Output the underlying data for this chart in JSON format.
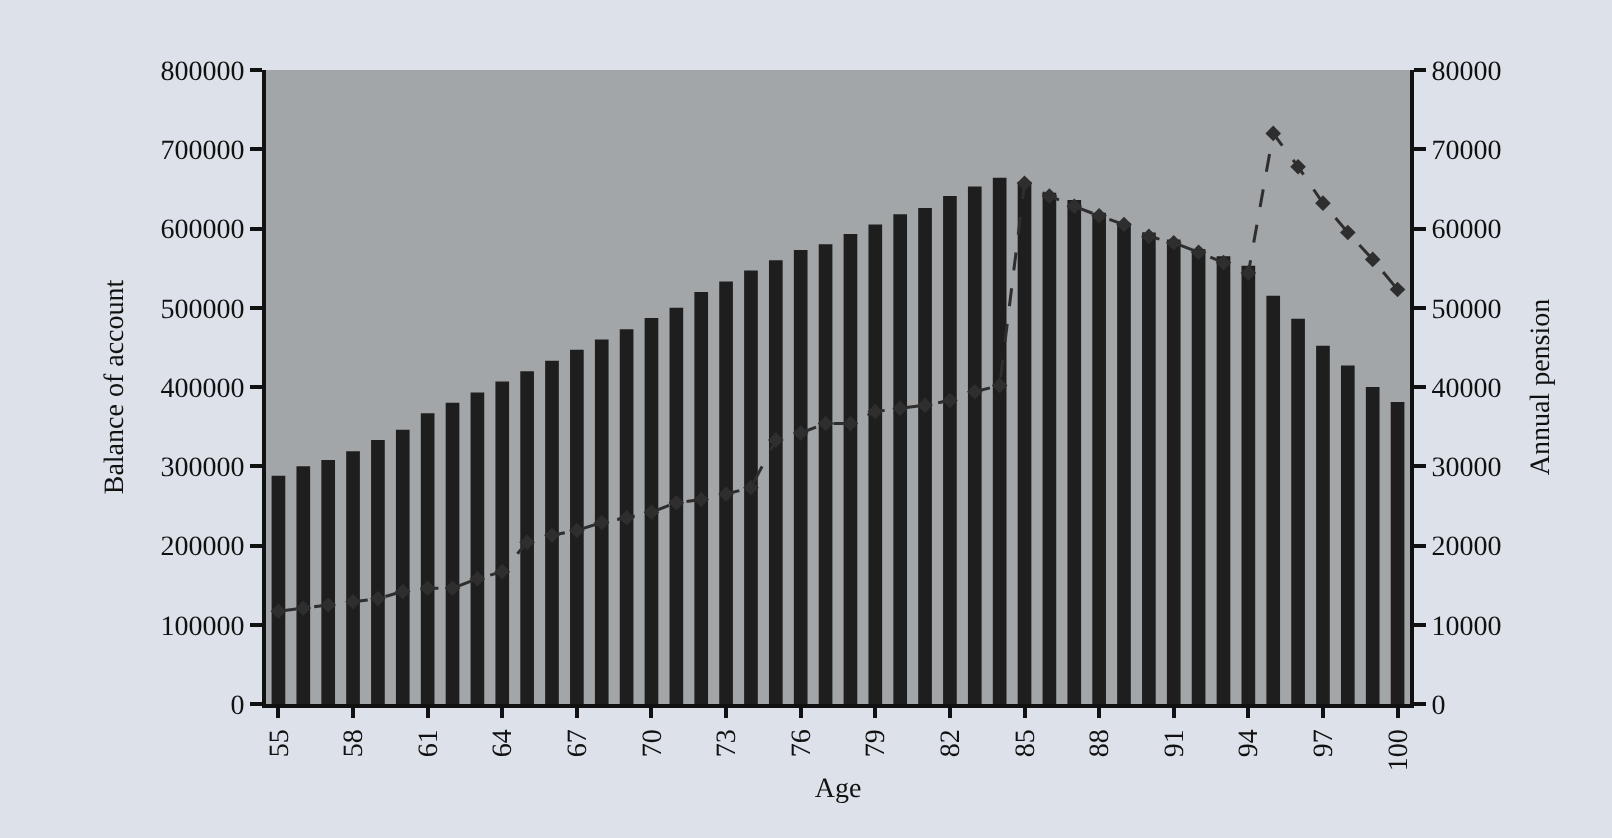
{
  "chart_data": {
    "type": "bar",
    "xlabel": "Age",
    "ylabel": "Balance of account",
    "y2label": "Annual pension",
    "categories": [
      "55",
      null,
      null,
      "58",
      null,
      null,
      "61",
      null,
      null,
      "64",
      null,
      null,
      "67",
      null,
      null,
      "70",
      null,
      null,
      "73",
      null,
      null,
      "76",
      null,
      null,
      "79",
      null,
      null,
      "82",
      null,
      null,
      "85",
      null,
      null,
      "88",
      null,
      null,
      "91",
      null,
      null,
      "94",
      null,
      null,
      "97",
      null,
      null,
      "100"
    ],
    "series": [
      {
        "color": "#1e1e1e",
        "values": [
          288000,
          300000,
          308000,
          319000,
          333000,
          346000,
          367000,
          380000,
          393000,
          407000,
          420000,
          433000,
          447000,
          460000,
          473000,
          487000,
          500000,
          520000,
          533000,
          547000,
          560000,
          573000,
          580000,
          593000,
          605000,
          618000,
          626000,
          641000,
          653000,
          664000,
          659000,
          645000,
          636000,
          620000,
          607000,
          595000,
          586000,
          574000,
          565000,
          553000,
          515000,
          486000,
          452000,
          427000,
          400000,
          381000
        ]
      },
      {
        "type": "line",
        "axis": "y2",
        "color": "#2e2e2e",
        "marker": "diamond",
        "line_style": "dashed",
        "values": [
          11700,
          12100,
          12500,
          12900,
          13300,
          14200,
          14600,
          14600,
          15800,
          16700,
          20400,
          21300,
          21900,
          22900,
          23500,
          24200,
          25400,
          25800,
          26500,
          27300,
          33300,
          34200,
          35400,
          35400,
          36900,
          37300,
          37700,
          38300,
          39400,
          40200,
          65700,
          64100,
          62800,
          61600,
          60500,
          59000,
          58200,
          57000,
          55700,
          54400,
          72000,
          67800,
          63200,
          59500,
          56100,
          52300
        ]
      }
    ],
    "ylim": [
      0,
      800000
    ],
    "yticks": [
      0,
      100000,
      200000,
      300000,
      400000,
      500000,
      600000,
      700000,
      800000
    ],
    "y2lim": [
      0,
      80000
    ],
    "y2ticks": [
      0,
      10000,
      20000,
      30000,
      40000,
      50000,
      60000,
      70000,
      80000
    ],
    "grid": false
  }
}
